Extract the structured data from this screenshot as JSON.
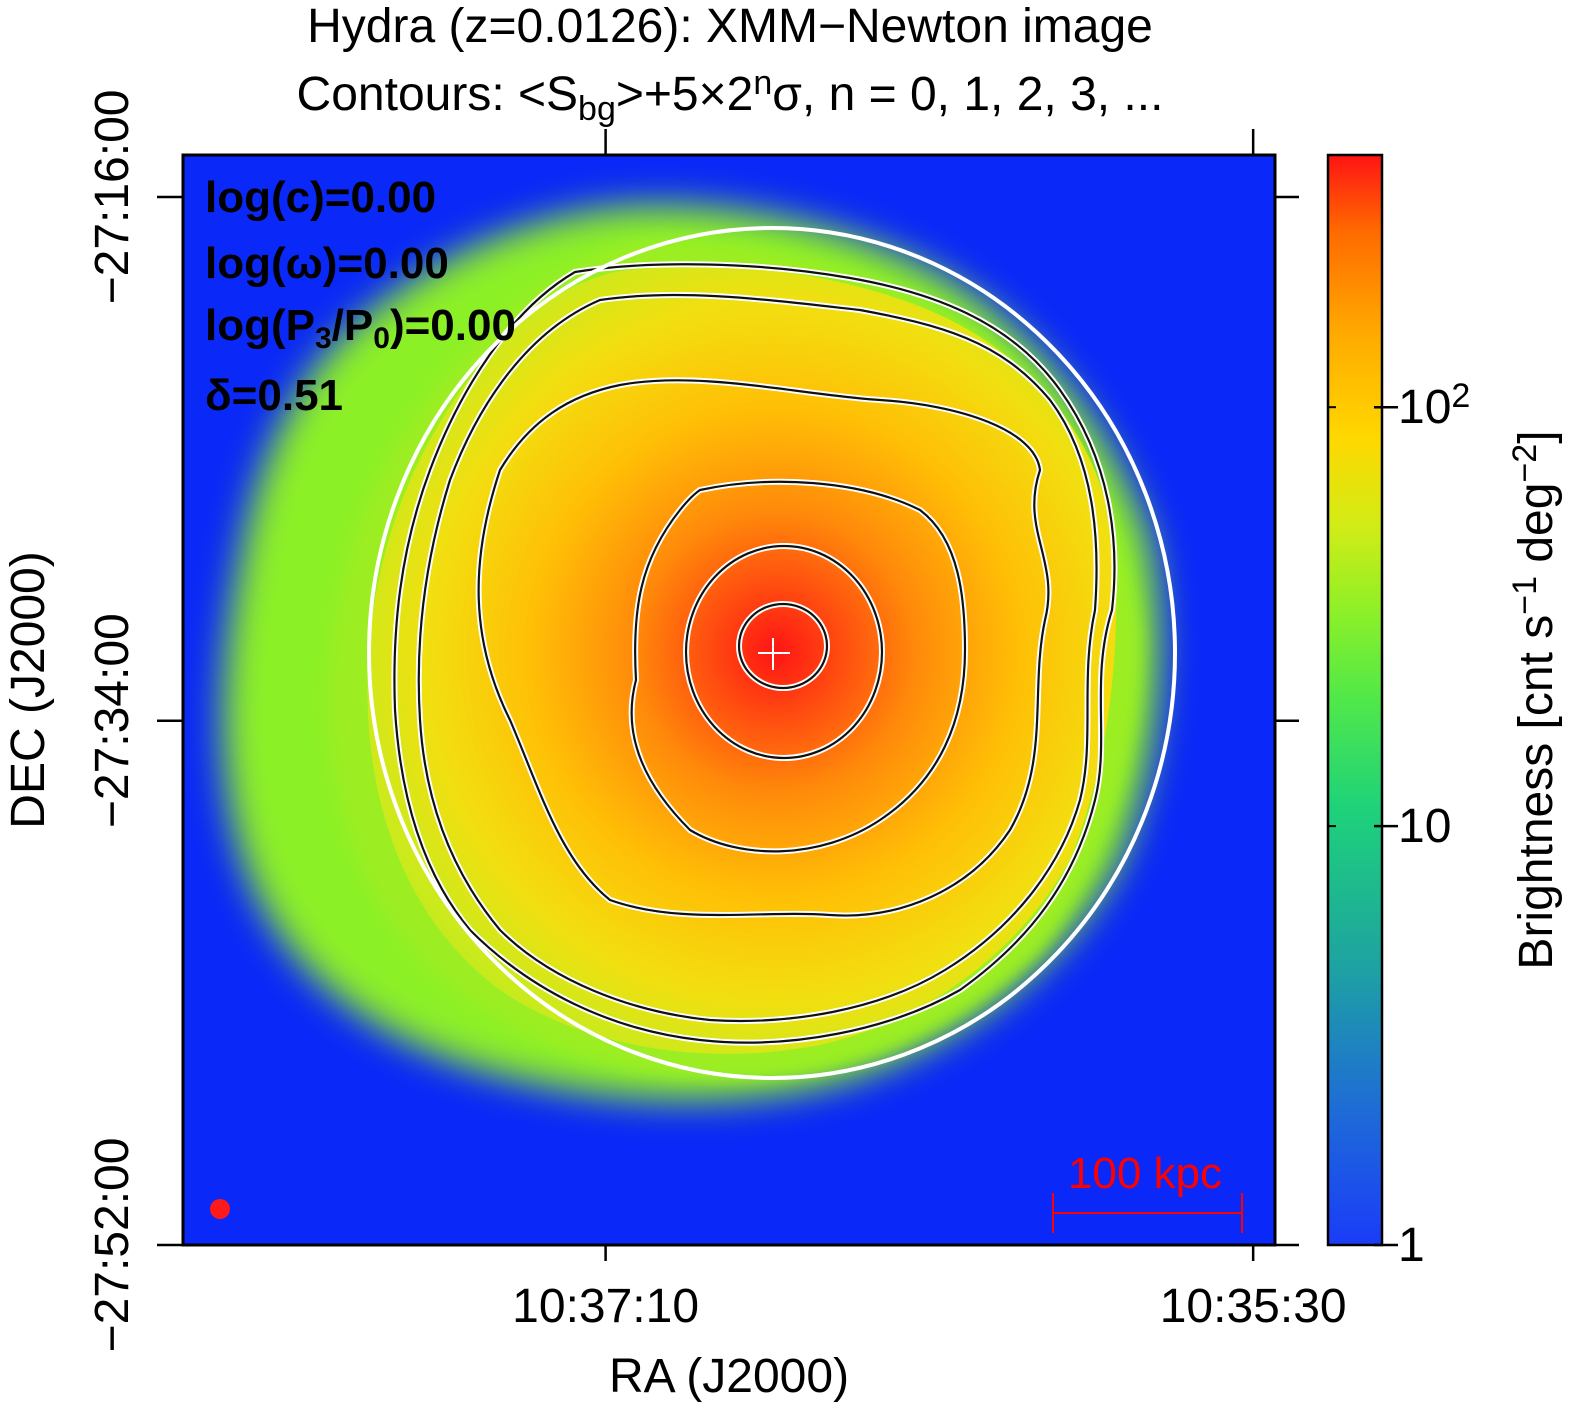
{
  "chart_data": {
    "type": "heatmap",
    "title_line1": "Hydra (z=0.0126): XMM−Newton image",
    "title_line2": {
      "prefix": "Contours: <S",
      "sub": "bg",
      "mid": ">+5×2",
      "sup": "n",
      "suffix": "σ, n = 0, 1, 2, 3, ..."
    },
    "xlabel": "RA (J2000)",
    "ylabel": "DEC (J2000)",
    "x_ticks": [
      {
        "label": "10:37:10",
        "frac": 0.387
      },
      {
        "label": "10:35:30",
        "frac": 0.98
      }
    ],
    "y_ticks": [
      {
        "label": "−27:16:00",
        "frac": 0.0385
      },
      {
        "label": "−27:34:00",
        "frac": 0.519
      },
      {
        "label": "−27:52:00",
        "frac": 1.0
      }
    ],
    "annotations": [
      {
        "label": "log(c)=0.00"
      },
      {
        "label": "log(ω)=0.00"
      },
      {
        "pre": "log(P",
        "sub1": "3",
        "mid": "/P",
        "sub2": "0",
        "post": ")=0.00"
      },
      {
        "label": "δ=0.51"
      }
    ],
    "scale_bar": {
      "label": "100 kpc",
      "color": "#ff0000"
    },
    "colorbar": {
      "label_main": "Brightness [cnt s",
      "sup1": "−1",
      "label_mid": " deg",
      "sup2": "−2",
      "label_end": "]",
      "scale": "log",
      "range": [
        1,
        400
      ],
      "ticks": [
        {
          "value": 1,
          "label": "1"
        },
        {
          "value": 10,
          "label": "10"
        },
        {
          "value": 100,
          "base": "10",
          "exp": "2"
        }
      ]
    },
    "colors": {
      "background": "#0a28f8",
      "low": "#1a4cf0",
      "mid_low": "#1ed27a",
      "mid": "#8cf028",
      "mid_high": "#ffd800",
      "high": "#ff8c00",
      "peak": "#ff1414",
      "ellipse": "#ffffff",
      "contour": "#111111"
    },
    "contour_levels_n": [
      0,
      1,
      2,
      3,
      4,
      5,
      6
    ]
  }
}
